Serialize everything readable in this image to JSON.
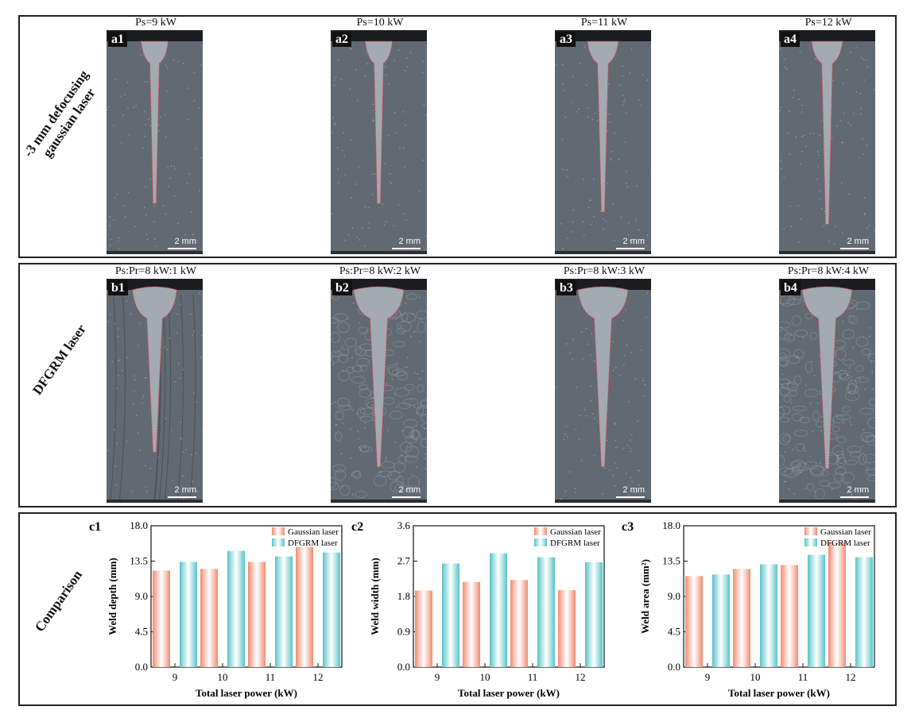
{
  "rows": [
    {
      "label_lines": [
        "-3 mm defocusing",
        "gaussian laser"
      ],
      "panels": [
        {
          "tag": "a1",
          "title": "Ps=9 kW",
          "scale": "2 mm",
          "weld": {
            "top_w": 0.28,
            "depth": 0.78,
            "bump": 0
          },
          "texture": "fine"
        },
        {
          "tag": "a2",
          "title": "Ps=10 kW",
          "scale": "2 mm",
          "weld": {
            "top_w": 0.28,
            "depth": 0.78,
            "bump": 0
          },
          "texture": "fine"
        },
        {
          "tag": "a3",
          "title": "Ps=11 kW",
          "scale": "2 mm",
          "weld": {
            "top_w": 0.32,
            "depth": 0.82,
            "bump": 0
          },
          "texture": "fine"
        },
        {
          "tag": "a4",
          "title": "Ps=12 kW",
          "scale": "2 mm",
          "weld": {
            "top_w": 0.32,
            "depth": 0.88,
            "bump": 0
          },
          "texture": "fine"
        }
      ]
    },
    {
      "label_lines": [
        "DFGRM laser"
      ],
      "panels": [
        {
          "tag": "b1",
          "title": "Ps:Pr=8 kW:1 kW",
          "scale": "2 mm",
          "weld": {
            "top_w": 0.46,
            "depth": 0.78,
            "bump": 1
          },
          "texture": "streak"
        },
        {
          "tag": "b2",
          "title": "Ps:Pr=8 kW:2 kW",
          "scale": "2 mm",
          "weld": {
            "top_w": 0.52,
            "depth": 0.85,
            "bump": 1
          },
          "texture": "cell"
        },
        {
          "tag": "b3",
          "title": "Ps:Pr=8 kW:3 kW",
          "scale": "2 mm",
          "weld": {
            "top_w": 0.52,
            "depth": 0.85,
            "bump": 1
          },
          "texture": "fine"
        },
        {
          "tag": "b4",
          "title": "Ps:Pr=8 kW:4 kW",
          "scale": "2 mm",
          "weld": {
            "top_w": 0.52,
            "depth": 0.86,
            "bump": 1
          },
          "texture": "cell"
        }
      ]
    }
  ],
  "comparison_label": "Comparison",
  "colors": {
    "gaussian": "#f08a6e",
    "dfgrm": "#56c3c8",
    "weld_line": "#e0414f"
  },
  "chart_data": [
    {
      "type": "bar",
      "tag": "c1",
      "categories": [
        "9",
        "10",
        "11",
        "12"
      ],
      "series": [
        {
          "name": "Gaussian laser",
          "values": [
            12.3,
            12.5,
            13.4,
            15.3
          ]
        },
        {
          "name": "DFGRM laser",
          "values": [
            13.4,
            14.8,
            14.1,
            14.6
          ]
        }
      ],
      "xlabel": "Total laser power (kW)",
      "ylabel": "Weld depth (mm)",
      "ylim": [
        0,
        18
      ],
      "yticks": [
        "0.0",
        "4.5",
        "9.0",
        "13.5",
        "18.0"
      ],
      "legend": "top-right"
    },
    {
      "type": "bar",
      "tag": "c2",
      "categories": [
        "9",
        "10",
        "11",
        "12"
      ],
      "series": [
        {
          "name": "Gaussian laser",
          "values": [
            1.95,
            2.17,
            2.22,
            1.96
          ]
        },
        {
          "name": "DFGRM laser",
          "values": [
            2.64,
            2.9,
            2.8,
            2.67
          ]
        }
      ],
      "xlabel": "Total laser power (kW)",
      "ylabel": "Weld width (mm)",
      "ylim": [
        0,
        3.6
      ],
      "yticks": [
        "0.0",
        "0.9",
        "1.8",
        "2.7",
        "3.6"
      ],
      "legend": "top-right"
    },
    {
      "type": "bar",
      "tag": "c3",
      "categories": [
        "9",
        "10",
        "11",
        "12"
      ],
      "series": [
        {
          "name": "Gaussian laser",
          "values": [
            11.6,
            12.5,
            13.0,
            15.9
          ]
        },
        {
          "name": "DFGRM laser",
          "values": [
            11.8,
            13.1,
            14.3,
            14.0
          ]
        }
      ],
      "xlabel": "Total laser power (kW)",
      "ylabel": "Weld area (mm²)",
      "ylim": [
        0,
        18
      ],
      "yticks": [
        "0.0",
        "4.5",
        "9.0",
        "13.5",
        "18.0"
      ],
      "legend": "top-right"
    }
  ]
}
